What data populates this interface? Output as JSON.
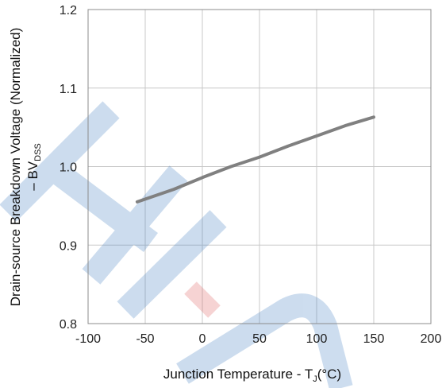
{
  "chart_data": {
    "type": "line",
    "xlabel": "Junction Temperature - T",
    "xlabel_sub": "J",
    "xlabel_unit": "(°C)",
    "ylabel_line1": "Drain-source Breakdown Voltage (Normalized)",
    "ylabel_line2_prefix": "– BV",
    "ylabel_line2_sub": "DSS",
    "xlim": [
      -100,
      200
    ],
    "ylim": [
      0.8,
      1.2
    ],
    "grid": true,
    "x_ticks": [
      -100,
      -50,
      0,
      50,
      100,
      150,
      200
    ],
    "y_ticks": [
      0.8,
      0.9,
      1.0,
      1.1,
      1.2
    ],
    "x_tick_labels": [
      "-100",
      "-50",
      "0",
      "50",
      "100",
      "150",
      "200"
    ],
    "y_tick_labels": [
      "0.8",
      "0.9",
      "1.0",
      "1.1",
      "1.2"
    ],
    "series": [
      {
        "color": "#808080",
        "x": [
          -57,
          -25,
          0,
          25,
          50,
          75,
          100,
          125,
          150
        ],
        "y": [
          0.955,
          0.971,
          0.986,
          1.0,
          1.012,
          1.026,
          1.039,
          1.052,
          1.063
        ]
      }
    ],
    "watermark_color": "#4a86c5",
    "watermark_accent": "#e06666"
  }
}
